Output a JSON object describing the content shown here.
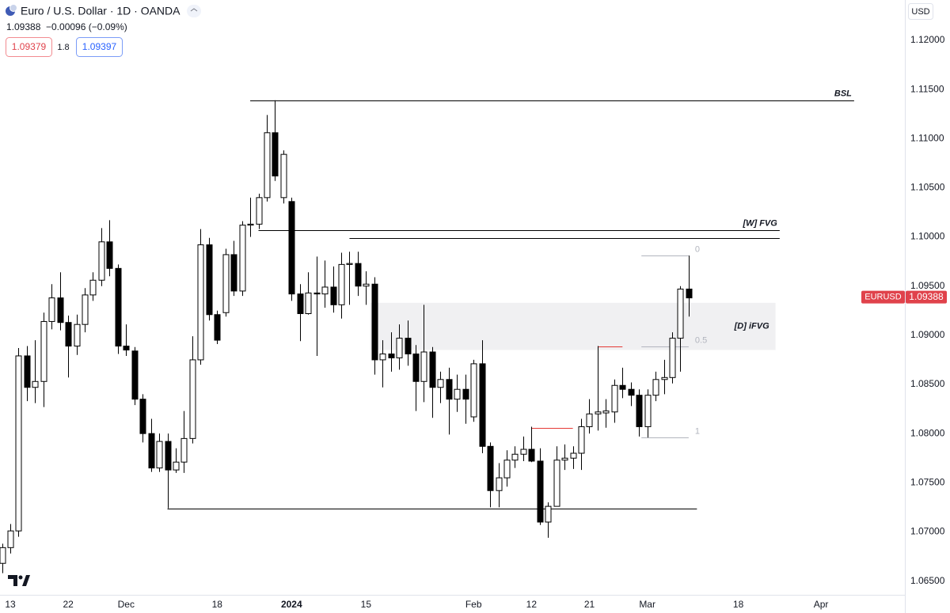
{
  "header": {
    "title": "Euro / U.S. Dollar · 1D · OANDA",
    "change": "−0.00096 (−0.09%)",
    "bid": "1.09379",
    "spread": "1.8",
    "ask": "1.09397",
    "currency": "USD",
    "symbol": "EURUSD"
  },
  "chart_data": {
    "type": "candlestick",
    "last": 1.09388,
    "up_color": "#ffffff",
    "down_color": "#000000",
    "categories": [
      null,
      "13",
      null,
      null,
      null,
      null,
      null,
      null,
      "22",
      null,
      null,
      null,
      null,
      null,
      null,
      "Dec",
      null,
      null,
      null,
      null,
      null,
      null,
      null,
      null,
      null,
      null,
      "18",
      null,
      null,
      null,
      null,
      null,
      null,
      null,
      null,
      "2024",
      null,
      null,
      null,
      null,
      null,
      null,
      null,
      null,
      "15",
      null,
      null,
      null,
      null,
      null,
      null,
      null,
      null,
      null,
      null,
      null,
      null,
      "Feb",
      null,
      null,
      null,
      null,
      null,
      null,
      "12",
      null,
      null,
      null,
      null,
      null,
      null,
      "21",
      null,
      null,
      null,
      null,
      null,
      null,
      "Mar",
      null,
      null,
      null,
      null,
      null,
      null,
      null,
      null,
      null,
      null,
      "18",
      null,
      null,
      null,
      null,
      null,
      null,
      null,
      null,
      null,
      "Apr",
      null,
      null,
      null,
      null,
      null,
      null,
      null,
      null,
      null,
      null
    ],
    "open": [
      1.0668,
      1.0684,
      1.0701,
      1.0879,
      1.0847,
      1.0853,
      1.0914,
      1.0938,
      1.0913,
      1.0889,
      1.0911,
      1.0941,
      1.0956,
      1.0995,
      1.0968,
      1.0889,
      1.0884,
      1.0835,
      1.08,
      1.0765,
      1.0792,
      1.0763,
      1.0771,
      1.0795,
      1.0875,
      1.0992,
      1.0921,
      1.0923,
      1.0982,
      1.0945,
      1.1012,
      1.1013,
      1.104,
      1.1106,
      1.104,
      1.1036,
      1.0942,
      1.0922,
      1.0943,
      1.0942,
      1.0949,
      1.0931,
      1.0972,
      1.0973,
      1.095,
      1.0952,
      1.0875,
      1.0881,
      1.0877,
      1.0897,
      1.0881,
      1.0853,
      1.0883,
      1.0847,
      1.0855,
      1.0835,
      1.0845,
      1.0817,
      1.0871,
      1.0787,
      1.0742,
      1.0755,
      1.0773,
      1.0779,
      1.0784,
      1.0772,
      1.071,
      1.0726,
      1.0773,
      1.0775,
      1.078,
      1.0807,
      1.082,
      1.0821,
      1.0822,
      1.0849,
      1.0845,
      1.0839,
      1.0807,
      1.0839,
      1.0855,
      1.0857,
      1.0897,
      1.0947,
      null,
      null,
      null,
      null,
      null,
      null,
      null,
      null,
      null,
      null,
      null,
      null,
      null,
      null,
      null,
      null,
      null,
      null,
      null,
      null,
      null,
      null,
      null,
      null,
      null,
      null
    ],
    "high": [
      1.0688,
      1.0708,
      1.0887,
      1.0889,
      1.0895,
      1.0923,
      1.0952,
      1.0964,
      1.092,
      1.0921,
      1.0948,
      1.0964,
      1.1009,
      1.1017,
      1.0972,
      1.0911,
      1.0888,
      1.084,
      1.0815,
      1.08,
      1.08,
      1.0785,
      1.0823,
      1.0899,
      1.1008,
      1.0999,
      1.0925,
      1.0988,
      1.0996,
      1.1016,
      1.104,
      1.1044,
      1.1124,
      1.1139,
      1.1088,
      1.104,
      1.0952,
      1.0964,
      1.098,
      1.0976,
      1.097,
      1.0984,
      1.0985,
      1.0985,
      1.0965,
      1.0959,
      1.0895,
      1.0903,
      1.0911,
      1.0915,
      1.089,
      1.0931,
      1.0888,
      1.0863,
      1.0867,
      1.086,
      1.086,
      1.0875,
      1.0895,
      1.0791,
      1.077,
      1.0783,
      1.0787,
      1.0797,
      1.0807,
      1.0785,
      1.073,
      1.0787,
      1.0789,
      1.0787,
      1.0815,
      1.0835,
      1.0889,
      1.0835,
      1.0855,
      1.0867,
      1.0852,
      1.0845,
      1.0845,
      1.0863,
      1.0875,
      1.0903,
      1.095,
      1.0981,
      null,
      null,
      null,
      null,
      null,
      null,
      null,
      null,
      null,
      null,
      null,
      null,
      null,
      null,
      null,
      null,
      null,
      null,
      null,
      null,
      null,
      null,
      null,
      null,
      null,
      null
    ],
    "low": [
      1.0658,
      1.0678,
      1.0695,
      1.0833,
      1.0831,
      1.0827,
      1.0906,
      1.0905,
      1.0857,
      1.088,
      1.0903,
      1.0935,
      1.095,
      1.096,
      1.0881,
      1.0879,
      1.0829,
      1.0791,
      1.0761,
      1.0761,
      1.0724,
      1.076,
      1.076,
      1.079,
      1.087,
      1.0915,
      1.0891,
      1.0919,
      1.094,
      1.094,
      1.1,
      1.1008,
      1.1036,
      1.1057,
      1.1034,
      1.0935,
      1.0894,
      1.0921,
      1.0879,
      1.0928,
      1.0923,
      1.0917,
      1.0931,
      1.094,
      1.0931,
      1.086,
      1.0847,
      1.0863,
      1.0865,
      1.0869,
      1.0823,
      1.0832,
      1.0816,
      1.0831,
      1.0799,
      1.0822,
      1.081,
      1.0812,
      1.078,
      1.0725,
      1.0725,
      1.0746,
      1.0765,
      1.0772,
      1.0771,
      1.0707,
      1.0694,
      1.0726,
      1.0763,
      1.0764,
      1.0763,
      1.08,
      1.0803,
      1.0806,
      1.0811,
      1.0836,
      1.0828,
      1.0797,
      1.0796,
      1.0833,
      1.084,
      1.0851,
      1.0863,
      1.0919,
      null,
      null,
      null,
      null,
      null,
      null,
      null,
      null,
      null,
      null,
      null,
      null,
      null,
      null,
      null,
      null,
      null,
      null,
      null,
      null,
      null,
      null,
      null,
      null,
      null,
      null
    ],
    "close": [
      1.0684,
      1.0701,
      1.0879,
      1.0847,
      1.0853,
      1.0914,
      1.0938,
      1.0913,
      1.0889,
      1.0911,
      1.0941,
      1.0956,
      1.0995,
      1.0968,
      1.0889,
      1.0885,
      1.0835,
      1.08,
      1.0765,
      1.0792,
      1.0763,
      1.0771,
      1.0795,
      1.0875,
      1.0992,
      1.0921,
      1.0895,
      1.0982,
      1.0945,
      1.1012,
      1.1013,
      1.104,
      1.1106,
      1.1062,
      1.1084,
      1.0942,
      1.0922,
      1.0943,
      1.0942,
      1.0949,
      1.0931,
      1.0972,
      1.0973,
      1.095,
      1.0952,
      1.0875,
      1.0881,
      1.0877,
      1.0897,
      1.0881,
      1.0853,
      1.0883,
      1.0847,
      1.0855,
      1.0835,
      1.0845,
      1.0835,
      1.0871,
      1.0787,
      1.0742,
      1.0755,
      1.0773,
      1.0779,
      1.0784,
      1.0772,
      1.071,
      1.0726,
      1.0773,
      1.0775,
      1.078,
      1.0807,
      1.082,
      1.0822,
      1.0823,
      1.0849,
      1.0845,
      1.0839,
      1.0807,
      1.0839,
      1.0855,
      1.0857,
      1.0897,
      1.0947,
      1.0938,
      null,
      null,
      null,
      null,
      null,
      null,
      null,
      null,
      null,
      null,
      null,
      null,
      null,
      null,
      null,
      null,
      null,
      null,
      null,
      null,
      null,
      null,
      null,
      null,
      null,
      null
    ],
    "ylim": [
      1.0636,
      1.1241
    ],
    "yticks": [
      {
        "value": 1.065,
        "label": "1.06500"
      },
      {
        "value": 1.07,
        "label": "1.07000"
      },
      {
        "value": 1.075,
        "label": "1.07500"
      },
      {
        "value": 1.08,
        "label": "1.08000"
      },
      {
        "value": 1.085,
        "label": "1.08500"
      },
      {
        "value": 1.09,
        "label": "1.09000"
      },
      {
        "value": 1.095,
        "label": "1.09500"
      },
      {
        "value": 1.1,
        "label": "1.10000"
      },
      {
        "value": 1.105,
        "label": "1.10500"
      },
      {
        "value": 1.11,
        "label": "1.11000"
      },
      {
        "value": 1.115,
        "label": "1.11500"
      },
      {
        "value": 1.12,
        "label": "1.12000"
      }
    ],
    "levels": [
      {
        "label": "BSL",
        "value": 1.1139,
        "x_range": [
          30,
          103
        ],
        "color": "#000000"
      },
      {
        "label": "[W] FVG",
        "value": 1.1007,
        "x_range": [
          31,
          94
        ],
        "color": "#000000"
      },
      {
        "value": 1.0999,
        "x_range": [
          42,
          94
        ],
        "color": "#000000"
      },
      {
        "value": 1.0724,
        "x_range": [
          20,
          84
        ],
        "color": "#000000"
      },
      {
        "value": 1.0806,
        "x_range": [
          64,
          69
        ],
        "color": "#e53935"
      },
      {
        "value": 1.0889,
        "x_range": [
          72,
          75
        ],
        "color": "#e53935"
      }
    ],
    "zone": {
      "label": "[D] iFVG",
      "top": 1.0933,
      "bottom": 1.0885,
      "x_range": [
        45,
        93
      ],
      "color": "#f0f0f2"
    },
    "fib": {
      "high": 1.0981,
      "low": 1.0796,
      "levels": [
        0,
        0.5,
        1
      ],
      "x_range": [
        77,
        83
      ],
      "color": "#b2b5be"
    }
  }
}
